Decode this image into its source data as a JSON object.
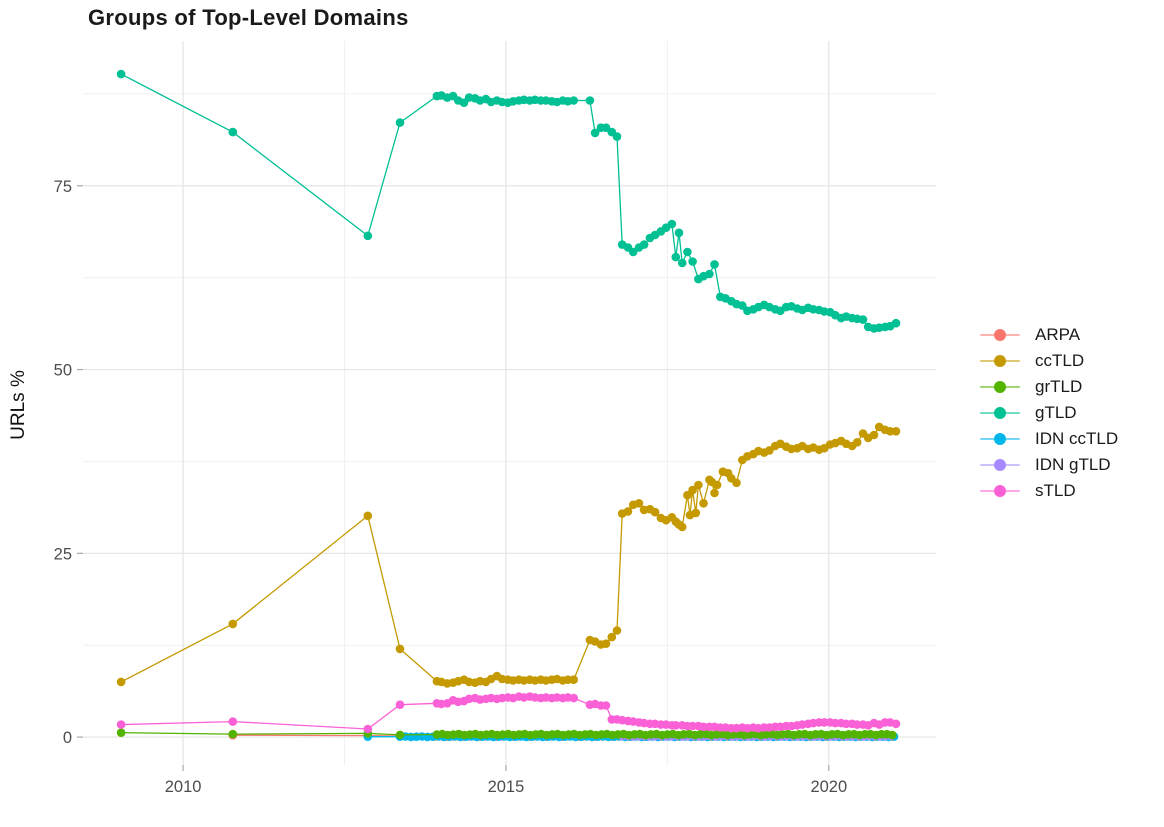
{
  "title": "Groups of Top-Level Domains",
  "chart_data": {
    "type": "line",
    "title": "Groups of Top-Level Domains",
    "xlabel": "",
    "ylabel": "URLs %",
    "grid": "on",
    "legend_position": "right",
    "x_range": [
      2008.45,
      2021.66
    ],
    "y_range": [
      -3.8,
      94.7
    ],
    "x_ticks": [
      2010,
      2015,
      2020
    ],
    "x_tick_labels": [
      "2010",
      "2015",
      "2020"
    ],
    "x_minor_ticks": [
      2012.5,
      2017.5
    ],
    "y_ticks": [
      0,
      25,
      50,
      75
    ],
    "y_tick_labels": [
      "0",
      "25",
      "50",
      "75"
    ],
    "y_minor_ticks": [
      12.5,
      37.5,
      62.5,
      87.5
    ],
    "draw_order": [
      0,
      4,
      5,
      2,
      6,
      1,
      3
    ],
    "series": [
      {
        "name": "ARPA",
        "color": "#F8766D",
        "points": [
          [
            2010.77,
            0.25
          ],
          [
            2012.86,
            0.2
          ],
          [
            2013.36,
            0.15
          ]
        ],
        "flat": {
          "from": 2013.93,
          "to": 2021.04,
          "step": 0.085,
          "value": 0.1,
          "wiggle": 0.04
        }
      },
      {
        "name": "ccTLD",
        "color": "#C49A00",
        "points": [
          [
            2009.04,
            7.5
          ],
          [
            2010.77,
            15.4
          ],
          [
            2012.86,
            30.1
          ],
          [
            2013.36,
            12.0
          ],
          [
            2013.93,
            7.6
          ],
          [
            2014.0,
            7.5
          ],
          [
            2014.09,
            7.3
          ],
          [
            2014.18,
            7.4
          ],
          [
            2014.26,
            7.6
          ],
          [
            2014.35,
            7.8
          ],
          [
            2014.43,
            7.5
          ],
          [
            2014.52,
            7.4
          ],
          [
            2014.6,
            7.6
          ],
          [
            2014.69,
            7.5
          ],
          [
            2014.77,
            7.9
          ],
          [
            2014.86,
            8.3
          ],
          [
            2014.94,
            7.9
          ],
          [
            2015.03,
            7.8
          ],
          [
            2015.11,
            7.7
          ],
          [
            2015.2,
            7.8
          ],
          [
            2015.28,
            7.7
          ],
          [
            2015.37,
            7.8
          ],
          [
            2015.45,
            7.7
          ],
          [
            2015.54,
            7.8
          ],
          [
            2015.62,
            7.7
          ],
          [
            2015.71,
            7.8
          ],
          [
            2015.79,
            7.9
          ],
          [
            2015.88,
            7.7
          ],
          [
            2015.96,
            7.8
          ],
          [
            2016.05,
            7.8
          ],
          [
            2016.3,
            13.2
          ],
          [
            2016.38,
            13.0
          ],
          [
            2016.47,
            12.6
          ],
          [
            2016.55,
            12.7
          ],
          [
            2016.64,
            13.6
          ],
          [
            2016.72,
            14.5
          ],
          [
            2016.8,
            30.4
          ],
          [
            2016.89,
            30.7
          ],
          [
            2016.97,
            31.6
          ],
          [
            2017.06,
            31.8
          ],
          [
            2017.14,
            30.9
          ],
          [
            2017.23,
            31.0
          ],
          [
            2017.31,
            30.6
          ],
          [
            2017.4,
            29.8
          ],
          [
            2017.48,
            29.5
          ],
          [
            2017.57,
            29.9
          ],
          [
            2017.63,
            29.3
          ],
          [
            2017.68,
            28.9
          ],
          [
            2017.73,
            28.6
          ],
          [
            2017.81,
            32.9
          ],
          [
            2017.85,
            30.2
          ],
          [
            2017.89,
            33.6
          ],
          [
            2017.94,
            30.5
          ],
          [
            2017.98,
            34.3
          ],
          [
            2018.06,
            31.8
          ],
          [
            2018.15,
            35.0
          ],
          [
            2018.19,
            34.7
          ],
          [
            2018.23,
            33.2
          ],
          [
            2018.27,
            34.3
          ],
          [
            2018.36,
            36.1
          ],
          [
            2018.44,
            35.9
          ],
          [
            2018.49,
            35.2
          ],
          [
            2018.57,
            34.6
          ],
          [
            2018.66,
            37.7
          ],
          [
            2018.74,
            38.2
          ],
          [
            2018.83,
            38.5
          ],
          [
            2018.91,
            38.9
          ],
          [
            2019.0,
            38.7
          ],
          [
            2019.08,
            39.0
          ],
          [
            2019.17,
            39.6
          ],
          [
            2019.25,
            39.9
          ],
          [
            2019.34,
            39.5
          ],
          [
            2019.42,
            39.2
          ],
          [
            2019.51,
            39.3
          ],
          [
            2019.59,
            39.6
          ],
          [
            2019.68,
            39.2
          ],
          [
            2019.76,
            39.4
          ],
          [
            2019.85,
            39.1
          ],
          [
            2019.93,
            39.3
          ],
          [
            2020.02,
            39.8
          ],
          [
            2020.1,
            40.0
          ],
          [
            2020.19,
            40.3
          ],
          [
            2020.27,
            39.9
          ],
          [
            2020.36,
            39.6
          ],
          [
            2020.44,
            40.1
          ],
          [
            2020.53,
            41.3
          ],
          [
            2020.61,
            40.7
          ],
          [
            2020.7,
            41.1
          ],
          [
            2020.78,
            42.2
          ],
          [
            2020.87,
            41.8
          ],
          [
            2020.95,
            41.6
          ],
          [
            2021.04,
            41.6
          ]
        ]
      },
      {
        "name": "grTLD",
        "color": "#53B400",
        "points": [
          [
            2009.04,
            0.6
          ],
          [
            2010.77,
            0.4
          ],
          [
            2012.86,
            0.5
          ],
          [
            2013.36,
            0.3
          ]
        ],
        "flat": {
          "from": 2013.93,
          "to": 2021.04,
          "step": 0.085,
          "value": 0.35,
          "wiggle": 0.08
        }
      },
      {
        "name": "gTLD",
        "color": "#00C094",
        "points": [
          [
            2009.04,
            90.2
          ],
          [
            2010.77,
            82.3
          ],
          [
            2012.86,
            68.2
          ],
          [
            2013.36,
            83.6
          ],
          [
            2013.93,
            87.2
          ],
          [
            2014.0,
            87.3
          ],
          [
            2014.09,
            87.0
          ],
          [
            2014.18,
            87.2
          ],
          [
            2014.26,
            86.6
          ],
          [
            2014.35,
            86.3
          ],
          [
            2014.43,
            87.0
          ],
          [
            2014.52,
            86.9
          ],
          [
            2014.6,
            86.6
          ],
          [
            2014.69,
            86.8
          ],
          [
            2014.77,
            86.4
          ],
          [
            2014.86,
            86.6
          ],
          [
            2014.94,
            86.4
          ],
          [
            2015.03,
            86.3
          ],
          [
            2015.11,
            86.5
          ],
          [
            2015.2,
            86.6
          ],
          [
            2015.28,
            86.7
          ],
          [
            2015.37,
            86.6
          ],
          [
            2015.45,
            86.7
          ],
          [
            2015.54,
            86.6
          ],
          [
            2015.62,
            86.6
          ],
          [
            2015.71,
            86.5
          ],
          [
            2015.79,
            86.4
          ],
          [
            2015.88,
            86.6
          ],
          [
            2015.96,
            86.5
          ],
          [
            2016.05,
            86.6
          ],
          [
            2016.3,
            86.6
          ],
          [
            2016.38,
            82.2
          ],
          [
            2016.47,
            82.9
          ],
          [
            2016.55,
            82.9
          ],
          [
            2016.64,
            82.3
          ],
          [
            2016.72,
            81.7
          ],
          [
            2016.8,
            67.0
          ],
          [
            2016.89,
            66.6
          ],
          [
            2016.97,
            66.0
          ],
          [
            2017.06,
            66.6
          ],
          [
            2017.14,
            67.0
          ],
          [
            2017.23,
            67.9
          ],
          [
            2017.31,
            68.3
          ],
          [
            2017.4,
            68.8
          ],
          [
            2017.48,
            69.3
          ],
          [
            2017.57,
            69.8
          ],
          [
            2017.63,
            65.3
          ],
          [
            2017.68,
            68.6
          ],
          [
            2017.73,
            64.5
          ],
          [
            2017.81,
            66.0
          ],
          [
            2017.89,
            64.7
          ],
          [
            2017.98,
            62.3
          ],
          [
            2018.06,
            62.7
          ],
          [
            2018.15,
            63.0
          ],
          [
            2018.23,
            64.3
          ],
          [
            2018.32,
            59.9
          ],
          [
            2018.4,
            59.7
          ],
          [
            2018.49,
            59.3
          ],
          [
            2018.57,
            58.9
          ],
          [
            2018.66,
            58.7
          ],
          [
            2018.74,
            58.0
          ],
          [
            2018.83,
            58.2
          ],
          [
            2018.91,
            58.5
          ],
          [
            2019.0,
            58.8
          ],
          [
            2019.08,
            58.5
          ],
          [
            2019.17,
            58.2
          ],
          [
            2019.25,
            58.0
          ],
          [
            2019.34,
            58.5
          ],
          [
            2019.42,
            58.6
          ],
          [
            2019.51,
            58.3
          ],
          [
            2019.59,
            58.1
          ],
          [
            2019.68,
            58.4
          ],
          [
            2019.76,
            58.2
          ],
          [
            2019.85,
            58.1
          ],
          [
            2019.93,
            57.9
          ],
          [
            2020.02,
            57.8
          ],
          [
            2020.1,
            57.4
          ],
          [
            2020.19,
            57.0
          ],
          [
            2020.27,
            57.2
          ],
          [
            2020.36,
            57.0
          ],
          [
            2020.44,
            56.9
          ],
          [
            2020.53,
            56.8
          ],
          [
            2020.61,
            55.8
          ],
          [
            2020.7,
            55.6
          ],
          [
            2020.78,
            55.7
          ],
          [
            2020.87,
            55.8
          ],
          [
            2020.95,
            55.9
          ],
          [
            2021.04,
            56.3
          ]
        ]
      },
      {
        "name": "IDN ccTLD",
        "color": "#00B6EB",
        "points": [
          [
            2012.86,
            0.05
          ]
        ],
        "flat": {
          "from": 2013.36,
          "to": 2021.04,
          "step": 0.085,
          "value": 0.05,
          "wiggle": 0.03
        }
      },
      {
        "name": "IDN gTLD",
        "color": "#A58AFF",
        "points": [],
        "flat": {
          "from": 2016.8,
          "to": 2021.04,
          "step": 0.085,
          "value": 0.12,
          "wiggle": 0.05
        }
      },
      {
        "name": "sTLD",
        "color": "#FB61D7",
        "points": [
          [
            2009.04,
            1.7
          ],
          [
            2010.77,
            2.1
          ],
          [
            2012.86,
            1.1
          ],
          [
            2013.36,
            4.4
          ],
          [
            2013.93,
            4.6
          ],
          [
            2014.0,
            4.5
          ],
          [
            2014.09,
            4.6
          ],
          [
            2014.18,
            5.0
          ],
          [
            2014.26,
            4.8
          ],
          [
            2014.35,
            4.9
          ],
          [
            2014.43,
            5.2
          ],
          [
            2014.52,
            5.3
          ],
          [
            2014.6,
            5.1
          ],
          [
            2014.69,
            5.2
          ],
          [
            2014.77,
            5.3
          ],
          [
            2014.86,
            5.2
          ],
          [
            2014.94,
            5.3
          ],
          [
            2015.03,
            5.4
          ],
          [
            2015.11,
            5.3
          ],
          [
            2015.2,
            5.5
          ],
          [
            2015.28,
            5.4
          ],
          [
            2015.37,
            5.5
          ],
          [
            2015.45,
            5.4
          ],
          [
            2015.54,
            5.3
          ],
          [
            2015.62,
            5.4
          ],
          [
            2015.71,
            5.3
          ],
          [
            2015.79,
            5.4
          ],
          [
            2015.88,
            5.3
          ],
          [
            2015.96,
            5.4
          ],
          [
            2016.05,
            5.3
          ],
          [
            2016.3,
            4.4
          ],
          [
            2016.38,
            4.5
          ],
          [
            2016.47,
            4.3
          ],
          [
            2016.55,
            4.3
          ],
          [
            2016.64,
            2.4
          ],
          [
            2016.72,
            2.4
          ],
          [
            2016.8,
            2.3
          ],
          [
            2016.89,
            2.2
          ],
          [
            2016.97,
            2.1
          ],
          [
            2017.06,
            2.0
          ],
          [
            2017.14,
            1.9
          ],
          [
            2017.23,
            1.8
          ],
          [
            2017.31,
            1.8
          ],
          [
            2017.4,
            1.7
          ],
          [
            2017.48,
            1.7
          ],
          [
            2017.57,
            1.6
          ],
          [
            2017.63,
            1.6
          ],
          [
            2017.73,
            1.6
          ],
          [
            2017.81,
            1.5
          ],
          [
            2017.89,
            1.5
          ],
          [
            2017.98,
            1.5
          ],
          [
            2018.06,
            1.4
          ],
          [
            2018.15,
            1.4
          ],
          [
            2018.23,
            1.4
          ],
          [
            2018.32,
            1.3
          ],
          [
            2018.4,
            1.3
          ],
          [
            2018.49,
            1.2
          ],
          [
            2018.57,
            1.2
          ],
          [
            2018.66,
            1.3
          ],
          [
            2018.74,
            1.2
          ],
          [
            2018.83,
            1.3
          ],
          [
            2018.91,
            1.2
          ],
          [
            2019.0,
            1.3
          ],
          [
            2019.08,
            1.3
          ],
          [
            2019.17,
            1.4
          ],
          [
            2019.25,
            1.4
          ],
          [
            2019.34,
            1.5
          ],
          [
            2019.42,
            1.5
          ],
          [
            2019.51,
            1.6
          ],
          [
            2019.59,
            1.7
          ],
          [
            2019.68,
            1.8
          ],
          [
            2019.76,
            1.9
          ],
          [
            2019.85,
            2.0
          ],
          [
            2019.93,
            2.0
          ],
          [
            2020.02,
            2.0
          ],
          [
            2020.1,
            1.9
          ],
          [
            2020.19,
            1.9
          ],
          [
            2020.27,
            1.8
          ],
          [
            2020.36,
            1.8
          ],
          [
            2020.44,
            1.7
          ],
          [
            2020.53,
            1.7
          ],
          [
            2020.61,
            1.6
          ],
          [
            2020.7,
            1.9
          ],
          [
            2020.78,
            1.7
          ],
          [
            2020.87,
            2.0
          ],
          [
            2020.95,
            2.0
          ],
          [
            2021.04,
            1.8
          ]
        ]
      }
    ]
  }
}
